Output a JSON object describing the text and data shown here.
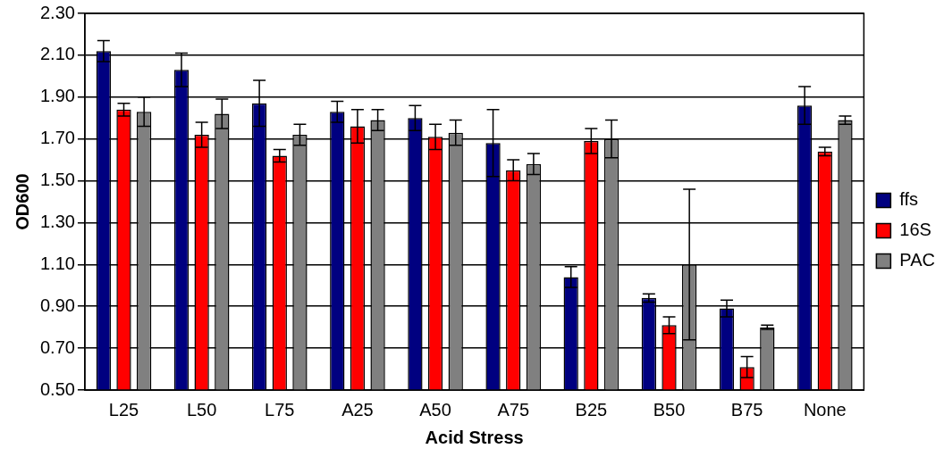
{
  "chart_data": {
    "type": "bar",
    "xlabel": "Acid Stress",
    "ylabel": "OD600",
    "categories": [
      "L25",
      "L50",
      "L75",
      "A25",
      "A50",
      "A75",
      "B25",
      "B50",
      "B75",
      "None"
    ],
    "series": [
      {
        "name": "ffs",
        "color": "#000080",
        "values": [
          2.12,
          2.03,
          1.87,
          1.83,
          1.8,
          1.68,
          1.04,
          0.94,
          0.89,
          1.86
        ],
        "errors": [
          0.05,
          0.08,
          0.11,
          0.05,
          0.06,
          0.16,
          0.05,
          0.02,
          0.04,
          0.09
        ]
      },
      {
        "name": "16S",
        "color": "#ff0000",
        "values": [
          1.84,
          1.72,
          1.62,
          1.76,
          1.71,
          1.55,
          1.69,
          0.81,
          0.61,
          1.64
        ],
        "errors": [
          0.03,
          0.06,
          0.03,
          0.08,
          0.06,
          0.05,
          0.06,
          0.04,
          0.05,
          0.02
        ]
      },
      {
        "name": "PAC",
        "color": "#808080",
        "values": [
          1.83,
          1.82,
          1.72,
          1.79,
          1.73,
          1.58,
          1.7,
          1.1,
          0.8,
          1.79
        ],
        "errors": [
          0.07,
          0.07,
          0.05,
          0.05,
          0.06,
          0.05,
          0.09,
          0.36,
          0.01,
          0.02
        ]
      }
    ],
    "ylim": [
      0.5,
      2.3
    ],
    "yticks": [
      {
        "value": 0.5,
        "label": "0.50"
      },
      {
        "value": 0.7,
        "label": "0.70"
      },
      {
        "value": 0.9,
        "label": "0.90"
      },
      {
        "value": 1.1,
        "label": "1.10"
      },
      {
        "value": 1.3,
        "label": "1.30"
      },
      {
        "value": 1.5,
        "label": "1.50"
      },
      {
        "value": 1.7,
        "label": "1.70"
      },
      {
        "value": 1.9,
        "label": "1.90"
      },
      {
        "value": 2.1,
        "label": "2.10"
      },
      {
        "value": 2.3,
        "label": "2.30"
      }
    ],
    "grid": "y",
    "legend": "right"
  }
}
